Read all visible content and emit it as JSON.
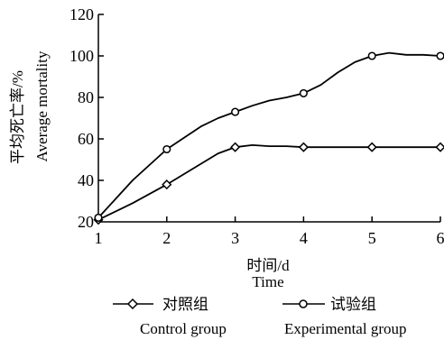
{
  "chart_data": {
    "type": "line",
    "x": [
      1,
      1.5,
      2,
      2.5,
      2.75,
      3,
      3.25,
      3.5,
      3.75,
      4,
      4.25,
      4.5,
      4.75,
      5,
      5.25,
      5.5,
      5.75,
      6
    ],
    "markers_x": [
      1,
      2,
      3,
      4,
      5,
      6
    ],
    "series": [
      {
        "name": "对照组 Control group",
        "name_cn": "对照组",
        "name_en": "Control group",
        "marker": "diamond",
        "values": [
          21,
          29,
          38,
          48,
          53,
          56,
          57,
          56.5,
          56.5,
          56,
          56,
          56,
          56,
          56,
          56,
          56,
          56,
          56
        ]
      },
      {
        "name": "试验组 Experimental group",
        "name_cn": "试验组",
        "name_en": "Experimental group",
        "marker": "circle",
        "values": [
          22,
          40,
          55,
          66,
          70,
          73,
          76,
          78.5,
          80,
          82,
          86,
          92,
          97,
          100,
          101.5,
          100.5,
          100.5,
          100
        ]
      }
    ],
    "xlabel_cn": "时间/d",
    "xlabel_en": "Time",
    "ylabel_cn": "平均死亡率/%",
    "ylabel_en": "Average mortality",
    "xlim": [
      1,
      6
    ],
    "ylim": [
      20,
      120
    ],
    "xticks": [
      "1",
      "2",
      "3",
      "4",
      "5",
      "6"
    ],
    "yticks": [
      "20",
      "40",
      "60",
      "80",
      "100",
      "120"
    ],
    "grid": false,
    "legend_position": "bottom"
  }
}
